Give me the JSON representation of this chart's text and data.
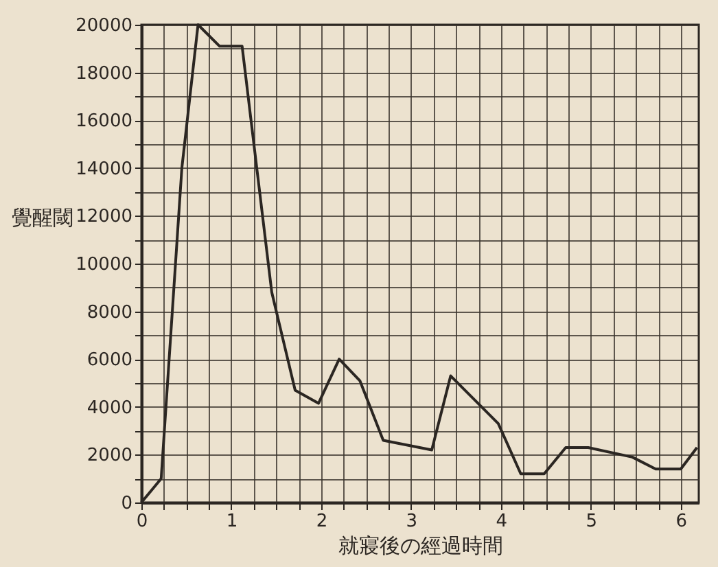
{
  "chart_data": {
    "type": "line",
    "xlabel": "就寢後の經過時間",
    "ylabel": "覺醒閾",
    "x": [
      0,
      0.22,
      0.45,
      0.63,
      0.87,
      1.12,
      1.45,
      1.71,
      1.97,
      2.2,
      2.43,
      2.69,
      3.23,
      3.44,
      3.97,
      4.22,
      4.48,
      4.72,
      4.97,
      5.46,
      5.72,
      6.0,
      6.18
    ],
    "series": [
      {
        "color": "#2b2622",
        "values": [
          0,
          1000,
          14000,
          20000,
          19100,
          19100,
          8800,
          4700,
          4150,
          6000,
          5100,
          2600,
          2200,
          5300,
          3300,
          1200,
          1200,
          2300,
          2300,
          1900,
          1400,
          1400,
          2300
        ]
      }
    ],
    "xlim": [
      0,
      6.2
    ],
    "xticks": [
      0,
      {
        "value": 0.25,
        "label": null
      },
      {
        "value": 0.5,
        "label": null
      },
      {
        "value": 0.75,
        "label": null
      },
      1,
      {
        "value": 1.25,
        "label": null
      },
      {
        "value": 1.5,
        "label": null
      },
      {
        "value": 1.75,
        "label": null
      },
      2,
      {
        "value": 2.25,
        "label": null
      },
      {
        "value": 2.5,
        "label": null
      },
      {
        "value": 2.75,
        "label": null
      },
      3,
      {
        "value": 3.25,
        "label": null
      },
      {
        "value": 3.5,
        "label": null
      },
      {
        "value": 3.75,
        "label": null
      },
      4,
      {
        "value": 4.25,
        "label": null
      },
      {
        "value": 4.5,
        "label": null
      },
      {
        "value": 4.75,
        "label": null
      },
      5,
      {
        "value": 5.25,
        "label": null
      },
      {
        "value": 5.5,
        "label": null
      },
      {
        "value": 5.75,
        "label": null
      },
      6
    ],
    "ylim": [
      0,
      20000
    ],
    "yticks": [
      0,
      {
        "value": 1000,
        "label": null
      },
      2000,
      {
        "value": 3000,
        "label": null
      },
      4000,
      {
        "value": 5000,
        "label": null
      },
      6000,
      {
        "value": 7000,
        "label": null
      },
      8000,
      {
        "value": 9000,
        "label": null
      },
      10000,
      {
        "value": 11000,
        "label": null
      },
      12000,
      {
        "value": 13000,
        "label": null
      },
      14000,
      {
        "value": 15000,
        "label": null
      },
      16000,
      {
        "value": 17000,
        "label": null
      },
      18000,
      {
        "value": 19000,
        "label": null
      },
      20000
    ],
    "grid": true,
    "marker": "none",
    "line_style": "solid"
  }
}
